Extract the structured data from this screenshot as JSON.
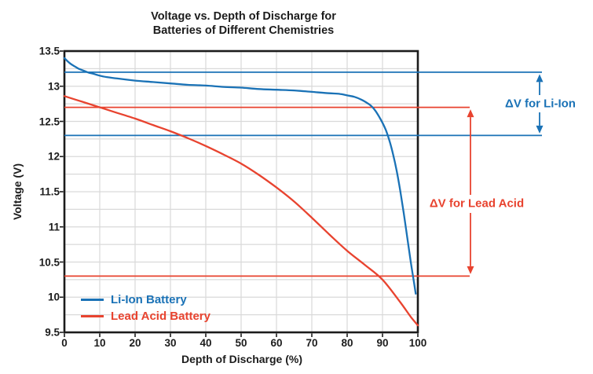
{
  "title": {
    "line1": "Voltage vs. Depth of Discharge for",
    "line2": "Batteries of Different Chemistries"
  },
  "colors": {
    "liion_blue": "#1a72b6",
    "lead_red": "#e8432f",
    "axis_dark": "#1c1c1c",
    "grid_gray": "#d9d9d9",
    "background": "#ffffff"
  },
  "legend": {
    "items": [
      {
        "label": "Li-Ion Battery"
      },
      {
        "label": "Lead Acid Battery"
      }
    ]
  },
  "chart_data": {
    "type": "line",
    "title": "Voltage vs. Depth of Discharge for Batteries of Different Chemistries",
    "xlabel": "Depth of Discharge (%)",
    "ylabel": "Voltage (V)",
    "xlim": [
      0,
      100
    ],
    "ylim": [
      9.5,
      13.5
    ],
    "x_ticks": [
      0,
      10,
      20,
      30,
      40,
      50,
      60,
      70,
      80,
      90,
      100
    ],
    "y_ticks": [
      9.5,
      10,
      10.5,
      11,
      11.5,
      12,
      12.5,
      13,
      13.5
    ],
    "grid": {
      "on": true,
      "x_step": 10,
      "y_step": 0.25
    },
    "legend_position": "lower-left-inside",
    "series": [
      {
        "name": "Li-Ion Battery",
        "color": "#1a72b6",
        "points": [
          [
            0,
            13.4
          ],
          [
            1,
            13.35
          ],
          [
            2,
            13.31
          ],
          [
            3,
            13.28
          ],
          [
            4,
            13.25
          ],
          [
            5,
            13.23
          ],
          [
            6,
            13.21
          ],
          [
            7,
            13.19
          ],
          [
            8,
            13.18
          ],
          [
            10,
            13.15
          ],
          [
            12,
            13.13
          ],
          [
            15,
            13.11
          ],
          [
            20,
            13.08
          ],
          [
            25,
            13.06
          ],
          [
            30,
            13.04
          ],
          [
            35,
            13.02
          ],
          [
            40,
            13.01
          ],
          [
            45,
            12.99
          ],
          [
            50,
            12.98
          ],
          [
            55,
            12.96
          ],
          [
            60,
            12.95
          ],
          [
            65,
            12.94
          ],
          [
            70,
            12.92
          ],
          [
            75,
            12.9
          ],
          [
            78,
            12.89
          ],
          [
            80,
            12.87
          ],
          [
            82,
            12.85
          ],
          [
            84,
            12.81
          ],
          [
            86,
            12.75
          ],
          [
            87,
            12.71
          ],
          [
            88,
            12.65
          ],
          [
            89,
            12.57
          ],
          [
            90,
            12.48
          ],
          [
            91,
            12.37
          ],
          [
            92,
            12.22
          ],
          [
            93,
            12.03
          ],
          [
            94,
            11.8
          ],
          [
            95,
            11.52
          ],
          [
            96,
            11.2
          ],
          [
            97,
            10.85
          ],
          [
            98,
            10.5
          ],
          [
            99,
            10.18
          ],
          [
            99.4,
            10.05
          ]
        ]
      },
      {
        "name": "Lead Acid Battery",
        "color": "#e8432f",
        "points": [
          [
            0,
            12.86
          ],
          [
            5,
            12.78
          ],
          [
            10,
            12.7
          ],
          [
            15,
            12.62
          ],
          [
            20,
            12.54
          ],
          [
            25,
            12.45
          ],
          [
            30,
            12.36
          ],
          [
            35,
            12.26
          ],
          [
            40,
            12.15
          ],
          [
            45,
            12.03
          ],
          [
            50,
            11.9
          ],
          [
            55,
            11.74
          ],
          [
            60,
            11.56
          ],
          [
            65,
            11.36
          ],
          [
            70,
            11.13
          ],
          [
            75,
            10.89
          ],
          [
            80,
            10.66
          ],
          [
            85,
            10.46
          ],
          [
            90,
            10.25
          ],
          [
            95,
            9.93
          ],
          [
            98,
            9.72
          ],
          [
            100,
            9.6
          ]
        ]
      }
    ],
    "reference_lines": [
      {
        "id": "liion-high",
        "value": 13.2,
        "color": "blue"
      },
      {
        "id": "liion-low",
        "value": 12.3,
        "color": "blue"
      },
      {
        "id": "lead-high",
        "value": 12.7,
        "color": "red"
      },
      {
        "id": "lead-low",
        "value": 10.3,
        "color": "red"
      }
    ],
    "annotations": [
      {
        "label": "ΔV for Li-Ion",
        "from_value": 13.2,
        "to_value": 12.3,
        "color": "blue"
      },
      {
        "label": "ΔV for Lead Acid",
        "from_value": 12.7,
        "to_value": 10.3,
        "color": "red"
      }
    ]
  }
}
